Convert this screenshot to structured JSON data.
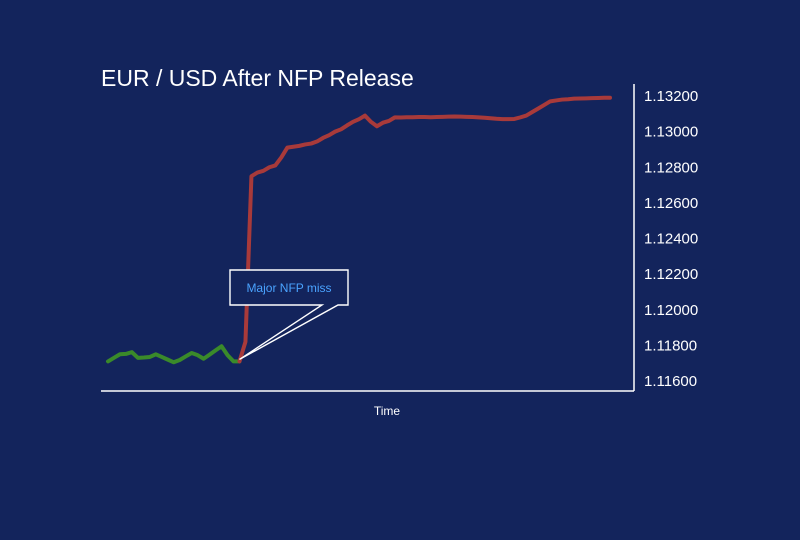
{
  "chart_data": {
    "type": "line",
    "title": "EUR / USD After NFP Release",
    "xlabel": "Time",
    "ylabel": "",
    "ylim": [
      1.116,
      1.132
    ],
    "yticks": [
      "1.13200",
      "1.13000",
      "1.12800",
      "1.12600",
      "1.12400",
      "1.12200",
      "1.12000",
      "1.11800",
      "1.11600"
    ],
    "grid": false,
    "legend": "none",
    "annotation": {
      "text": "Major NFP miss",
      "x": 22,
      "y": 1.1171
    },
    "series": [
      {
        "color": "#3a8a2a",
        "x": [
          0,
          1,
          2,
          3,
          4,
          5,
          6,
          7,
          8,
          9,
          10,
          11,
          12,
          13,
          14,
          15,
          16,
          17,
          18,
          19,
          20,
          21,
          22
        ],
        "values": [
          1.1171,
          1.1173,
          1.1175,
          1.11752,
          1.11762,
          1.1173,
          1.11732,
          1.11735,
          1.1175,
          1.11735,
          1.1172,
          1.11705,
          1.11718,
          1.11738,
          1.11757,
          1.11745,
          1.11725,
          1.11748,
          1.11772,
          1.11795,
          1.11745,
          1.1171,
          1.1171
        ]
      },
      {
        "color": "#a83a3a",
        "x": [
          22,
          23,
          24,
          25,
          26,
          27,
          28,
          29,
          30,
          31,
          32,
          33,
          34,
          35,
          36,
          37,
          38,
          39,
          40,
          41,
          42,
          43,
          44,
          45,
          46,
          47,
          48,
          49,
          50,
          51,
          52,
          53,
          54,
          55,
          56,
          57,
          58,
          59,
          60,
          61,
          62,
          63,
          64,
          65,
          66,
          67,
          68,
          69,
          70,
          71,
          72,
          73,
          74,
          75,
          76,
          77,
          78,
          79,
          80,
          81,
          82,
          83,
          84
        ],
        "values": [
          1.1171,
          1.1182,
          1.1275,
          1.1277,
          1.1278,
          1.128,
          1.1281,
          1.12855,
          1.1291,
          1.12915,
          1.1292,
          1.12928,
          1.12933,
          1.12945,
          1.12965,
          1.1298,
          1.13,
          1.13013,
          1.13035,
          1.13055,
          1.1307,
          1.1309,
          1.13055,
          1.1303,
          1.1305,
          1.1306,
          1.1308,
          1.13079,
          1.13081,
          1.13081,
          1.13082,
          1.13082,
          1.13081,
          1.13082,
          1.13083,
          1.13084,
          1.13085,
          1.13084,
          1.13083,
          1.13082,
          1.1308,
          1.13078,
          1.13075,
          1.13072,
          1.1307,
          1.1307,
          1.13071,
          1.1308,
          1.1309,
          1.1311,
          1.1313,
          1.1315,
          1.1317,
          1.13175,
          1.1318,
          1.13182,
          1.13185,
          1.13186,
          1.13187,
          1.13188,
          1.13189,
          1.1319,
          1.1319
        ]
      }
    ]
  }
}
